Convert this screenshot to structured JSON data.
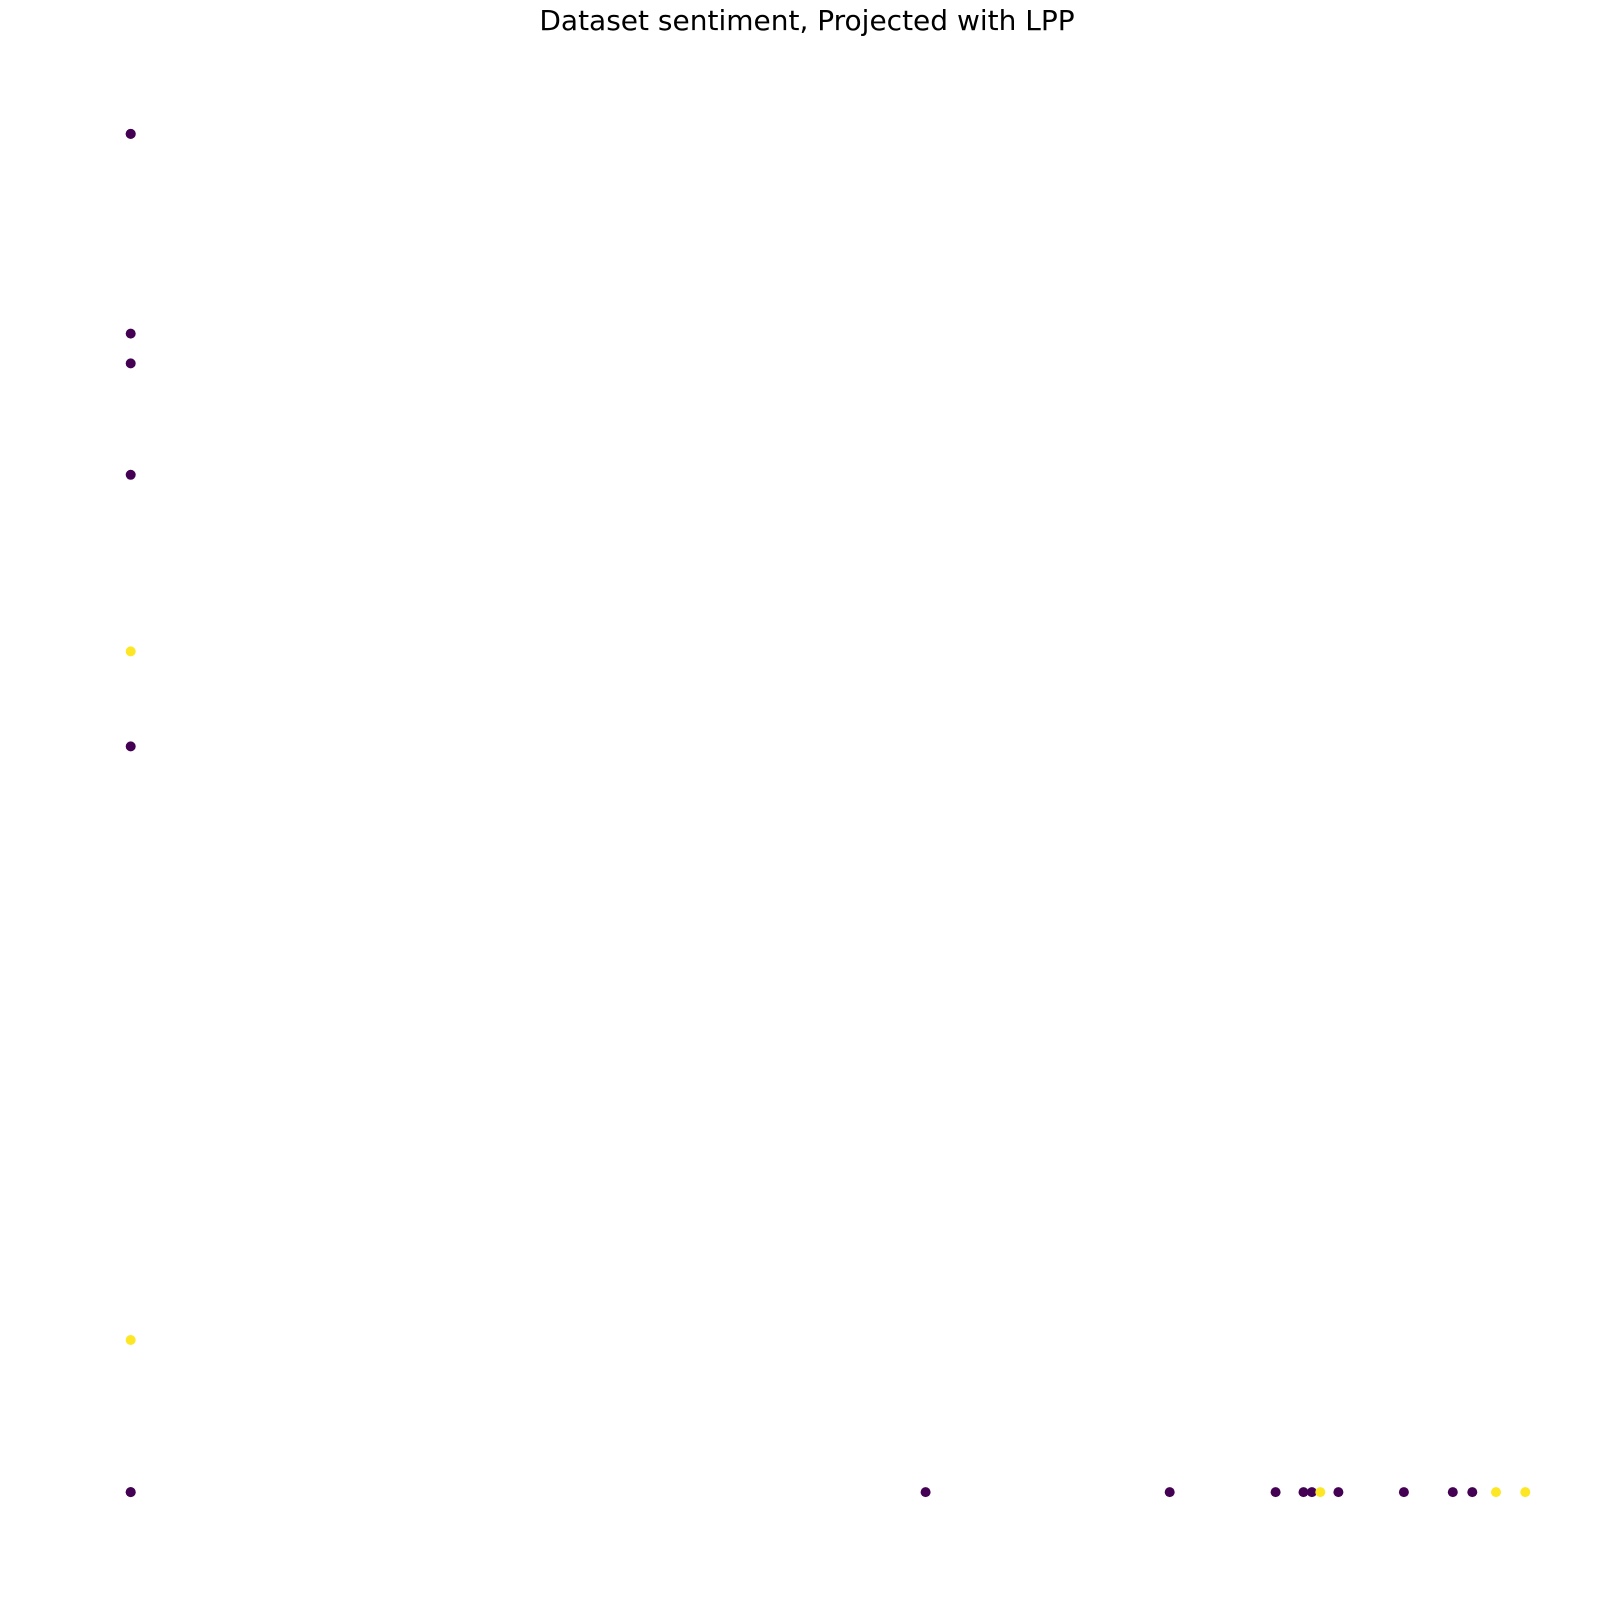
{
  "chart_data": {
    "type": "scatter",
    "title": "Dataset sentiment, Projected with LPP",
    "xlabel": "",
    "ylabel": "",
    "axes_visible": false,
    "grid": false,
    "xlim": [
      -0.05,
      1.05
    ],
    "ylim": [
      -0.05,
      1.05
    ],
    "colors": {
      "class_0": "#440154",
      "class_1": "#fde725"
    },
    "points": [
      {
        "x": 0.0,
        "y": 1.0,
        "class": 0
      },
      {
        "x": 0.0,
        "y": 1.0,
        "class": 0
      },
      {
        "x": 0.0,
        "y": 0.853,
        "class": 0
      },
      {
        "x": 0.0,
        "y": 0.831,
        "class": 0
      },
      {
        "x": 0.0,
        "y": 0.749,
        "class": 0
      },
      {
        "x": 0.0,
        "y": 0.619,
        "class": 1
      },
      {
        "x": 0.0,
        "y": 0.549,
        "class": 0
      },
      {
        "x": 0.0,
        "y": 0.112,
        "class": 1
      },
      {
        "x": 0.0,
        "y": 0.0,
        "class": 0
      },
      {
        "x": 0.0,
        "y": 0.0,
        "class": 0
      },
      {
        "x": 0.57,
        "y": 0.0,
        "class": 0
      },
      {
        "x": 0.745,
        "y": 0.0,
        "class": 0
      },
      {
        "x": 0.821,
        "y": 0.0,
        "class": 0
      },
      {
        "x": 0.841,
        "y": 0.0,
        "class": 0
      },
      {
        "x": 0.847,
        "y": 0.0,
        "class": 0
      },
      {
        "x": 0.853,
        "y": 0.0,
        "class": 1
      },
      {
        "x": 0.866,
        "y": 0.0,
        "class": 0
      },
      {
        "x": 0.913,
        "y": 0.0,
        "class": 0
      },
      {
        "x": 0.948,
        "y": 0.0,
        "class": 0
      },
      {
        "x": 0.962,
        "y": 0.0,
        "class": 0
      },
      {
        "x": 0.979,
        "y": 0.0,
        "class": 1
      },
      {
        "x": 1.0,
        "y": 0.0,
        "class": 1
      }
    ]
  }
}
